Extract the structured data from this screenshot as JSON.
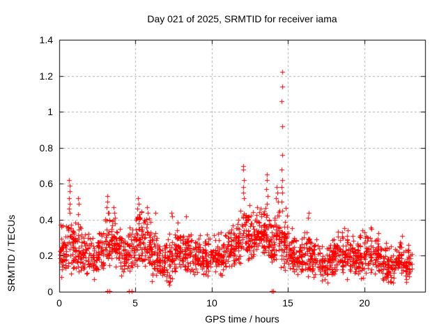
{
  "page": {
    "background": "#ffffff"
  },
  "chart_data": {
    "type": "scatter",
    "title": "Day 021 of 2025, SRMTID for receiver iama",
    "xlabel": "GPS time / hours",
    "ylabel": "SRMTID / TECUs",
    "xlim": [
      0,
      24
    ],
    "ylim": [
      0,
      1.4
    ],
    "xticks": [
      0,
      5,
      10,
      15,
      20
    ],
    "xtick_labels": [
      "0",
      "5",
      "10",
      "15",
      "20"
    ],
    "yticks": [
      0,
      0.2,
      0.4,
      0.6,
      0.8,
      1,
      1.2,
      1.4
    ],
    "ytick_labels": [
      "0",
      "0.2",
      "0.4",
      "0.6",
      "0.8",
      "1",
      "1.2",
      "1.4"
    ],
    "grid": true,
    "legend": "none",
    "marker": "plus",
    "marker_color": "#ff0000",
    "grid_color": "#b0b0b0",
    "axis_color": "#000000",
    "seed": 2125,
    "series": [
      {
        "name": "SRMTID",
        "band_bins": [
          [
            0.0,
            0.5,
            0.23,
            0.1,
            46
          ],
          [
            0.5,
            1.0,
            0.25,
            0.12,
            46
          ],
          [
            1.0,
            1.5,
            0.22,
            0.11,
            44
          ],
          [
            1.5,
            2.0,
            0.2,
            0.08,
            40
          ],
          [
            2.0,
            2.5,
            0.18,
            0.08,
            40
          ],
          [
            2.5,
            3.0,
            0.21,
            0.09,
            42
          ],
          [
            3.0,
            3.5,
            0.26,
            0.12,
            50
          ],
          [
            3.5,
            4.0,
            0.25,
            0.11,
            46
          ],
          [
            4.0,
            4.5,
            0.2,
            0.09,
            42
          ],
          [
            4.5,
            5.0,
            0.21,
            0.1,
            44
          ],
          [
            5.0,
            5.5,
            0.27,
            0.12,
            50
          ],
          [
            5.5,
            6.0,
            0.25,
            0.11,
            46
          ],
          [
            6.0,
            6.5,
            0.19,
            0.09,
            42
          ],
          [
            6.5,
            7.0,
            0.17,
            0.09,
            40
          ],
          [
            7.0,
            7.5,
            0.17,
            0.1,
            44
          ],
          [
            7.5,
            8.0,
            0.22,
            0.11,
            46
          ],
          [
            8.0,
            8.5,
            0.23,
            0.11,
            46
          ],
          [
            8.5,
            9.0,
            0.2,
            0.1,
            42
          ],
          [
            9.0,
            9.5,
            0.18,
            0.09,
            42
          ],
          [
            9.5,
            10.0,
            0.19,
            0.09,
            42
          ],
          [
            10.0,
            10.5,
            0.21,
            0.09,
            44
          ],
          [
            10.5,
            11.0,
            0.19,
            0.09,
            42
          ],
          [
            11.0,
            11.5,
            0.23,
            0.09,
            44
          ],
          [
            11.5,
            12.0,
            0.27,
            0.1,
            46
          ],
          [
            12.0,
            12.5,
            0.3,
            0.11,
            50
          ],
          [
            12.5,
            13.0,
            0.3,
            0.1,
            46
          ],
          [
            13.0,
            13.5,
            0.31,
            0.11,
            48
          ],
          [
            13.5,
            14.0,
            0.29,
            0.12,
            46
          ],
          [
            14.0,
            14.5,
            0.31,
            0.12,
            46
          ],
          [
            14.5,
            15.0,
            0.27,
            0.14,
            50
          ],
          [
            15.0,
            15.5,
            0.2,
            0.1,
            44
          ],
          [
            15.5,
            16.0,
            0.18,
            0.08,
            42
          ],
          [
            16.0,
            16.5,
            0.2,
            0.1,
            44
          ],
          [
            16.5,
            17.0,
            0.17,
            0.08,
            40
          ],
          [
            17.0,
            17.5,
            0.15,
            0.08,
            40
          ],
          [
            17.5,
            18.0,
            0.17,
            0.08,
            42
          ],
          [
            18.0,
            18.5,
            0.2,
            0.09,
            44
          ],
          [
            18.5,
            19.0,
            0.2,
            0.1,
            44
          ],
          [
            19.0,
            19.5,
            0.18,
            0.09,
            42
          ],
          [
            19.5,
            20.0,
            0.19,
            0.1,
            44
          ],
          [
            20.0,
            20.5,
            0.21,
            0.1,
            44
          ],
          [
            20.5,
            21.0,
            0.2,
            0.09,
            44
          ],
          [
            21.0,
            21.5,
            0.15,
            0.08,
            40
          ],
          [
            21.5,
            22.0,
            0.14,
            0.08,
            40
          ],
          [
            22.0,
            22.5,
            0.18,
            0.09,
            44
          ],
          [
            22.5,
            23.0,
            0.15,
            0.08,
            38
          ],
          [
            23.0,
            23.15,
            0.15,
            0.05,
            8
          ]
        ],
        "peak_points": [
          [
            0.65,
            0.62
          ],
          [
            0.67,
            0.59
          ],
          [
            0.68,
            0.56
          ],
          [
            0.66,
            0.52
          ],
          [
            0.69,
            0.49
          ],
          [
            0.64,
            0.46
          ],
          [
            0.7,
            0.44
          ],
          [
            1.25,
            0.52
          ],
          [
            1.27,
            0.49
          ],
          [
            1.24,
            0.43
          ],
          [
            3.15,
            0.53
          ],
          [
            3.17,
            0.5
          ],
          [
            3.13,
            0.47
          ],
          [
            3.2,
            0.44
          ],
          [
            3.55,
            0.47
          ],
          [
            3.6,
            0.44
          ],
          [
            5.15,
            0.52
          ],
          [
            5.2,
            0.49
          ],
          [
            5.1,
            0.46
          ],
          [
            5.25,
            0.43
          ],
          [
            5.75,
            0.47
          ],
          [
            5.8,
            0.44
          ],
          [
            6.3,
            0.44
          ],
          [
            7.35,
            0.44
          ],
          [
            7.4,
            0.42
          ],
          [
            8.3,
            0.42
          ],
          [
            11.9,
            0.45
          ],
          [
            12.05,
            0.7
          ],
          [
            12.07,
            0.68
          ],
          [
            12.1,
            0.62
          ],
          [
            12.05,
            0.58
          ],
          [
            12.08,
            0.55
          ],
          [
            12.12,
            0.52
          ],
          [
            12.5,
            0.48
          ],
          [
            13.0,
            0.47
          ],
          [
            13.2,
            0.46
          ],
          [
            13.6,
            0.65
          ],
          [
            13.62,
            0.62
          ],
          [
            13.58,
            0.57
          ],
          [
            13.65,
            0.53
          ],
          [
            13.6,
            0.49
          ],
          [
            14.25,
            0.58
          ],
          [
            14.3,
            0.55
          ],
          [
            14.2,
            0.52
          ],
          [
            14.35,
            0.5
          ],
          [
            14.62,
            1.22
          ],
          [
            14.63,
            1.14
          ],
          [
            14.6,
            1.06
          ],
          [
            14.62,
            0.92
          ],
          [
            14.65,
            0.76
          ],
          [
            14.6,
            0.68
          ],
          [
            14.63,
            0.62
          ],
          [
            14.6,
            0.58
          ],
          [
            14.65,
            0.55
          ],
          [
            14.6,
            0.5
          ],
          [
            14.62,
            0.45
          ],
          [
            16.35,
            0.44
          ],
          [
            16.3,
            0.41
          ]
        ],
        "low_points": [
          [
            0.15,
            0.08
          ],
          [
            2.3,
            0.07
          ],
          [
            6.1,
            0.06
          ],
          [
            7.2,
            0.04
          ],
          [
            7.25,
            0.06
          ],
          [
            17.6,
            0.05
          ],
          [
            18.9,
            0.07
          ],
          [
            21.9,
            0.05
          ]
        ],
        "zero_points": [
          3.17,
          3.31,
          4.59,
          4.74,
          13.93,
          14.03
        ]
      }
    ]
  }
}
